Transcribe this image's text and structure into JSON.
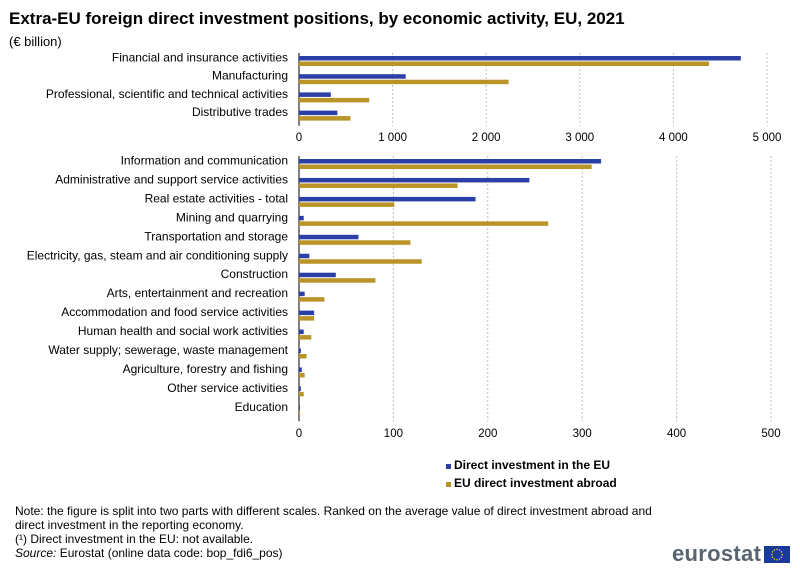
{
  "title": "Extra-EU foreign direct investment positions, by economic activity, EU, 2021",
  "subtitle": "(€ billion)",
  "colors": {
    "inward": "#2b40a6",
    "outward": "#b99429",
    "grid": "#bdbdbd",
    "brand": "#5a6470",
    "flag": "#1a3a9a",
    "flag_stars": "#ffd700"
  },
  "chart_data": [
    {
      "type": "bar",
      "orientation": "horizontal",
      "categories": [
        "Financial and insurance activities",
        "Manufacturing",
        "Professional, scientific and technical activities",
        "Distributive trades"
      ],
      "series": [
        {
          "name": "Direct investment in the EU",
          "values": [
            4720,
            1140,
            340,
            410
          ]
        },
        {
          "name": "EU direct investment abroad",
          "values": [
            4380,
            2240,
            750,
            550
          ]
        }
      ],
      "xlim": [
        0,
        5000
      ],
      "xticks": [
        "0",
        "1 000",
        "2 000",
        "3 000",
        "4 000",
        "5 000"
      ],
      "grid": true
    },
    {
      "type": "bar",
      "orientation": "horizontal",
      "categories": [
        "Information and communication",
        "Administrative and support service activities",
        "Real estate activities - total",
        "Mining and quarrying",
        "Transportation and storage",
        "Electricity, gas, steam and air conditioning supply",
        "Construction",
        "Arts, entertainment and recreation",
        "Accommodation and food service activities",
        "Human health and social work activities",
        "Water supply; sewerage, waste management",
        "Agriculture, forestry and fishing",
        "Other service activities",
        "Education"
      ],
      "series": [
        {
          "name": "Direct investment in the EU",
          "values": [
            320,
            244,
            187,
            5,
            63,
            11,
            39,
            6,
            16,
            5,
            2,
            3,
            2,
            1
          ]
        },
        {
          "name": "EU direct investment abroad",
          "values": [
            310,
            168,
            101,
            264,
            118,
            130,
            81,
            27,
            16,
            13,
            8,
            6,
            5,
            1
          ]
        }
      ],
      "xlim": [
        0,
        500
      ],
      "xticks": [
        "0",
        "100",
        "200",
        "300",
        "400",
        "500"
      ],
      "grid": true
    }
  ],
  "legend": [
    "Direct investment in the EU",
    "EU direct investment abroad"
  ],
  "notes": {
    "line1": "Note: the figure is split into two parts with different scales. Ranked on the average value of direct investment abroad and direct investment in the reporting economy.",
    "line2": "(¹) Direct investment in the EU: not available.",
    "source_label": "Source:",
    "source_text": " Eurostat (online data code: bop_fdi6_pos)"
  },
  "brand": "eurostat"
}
